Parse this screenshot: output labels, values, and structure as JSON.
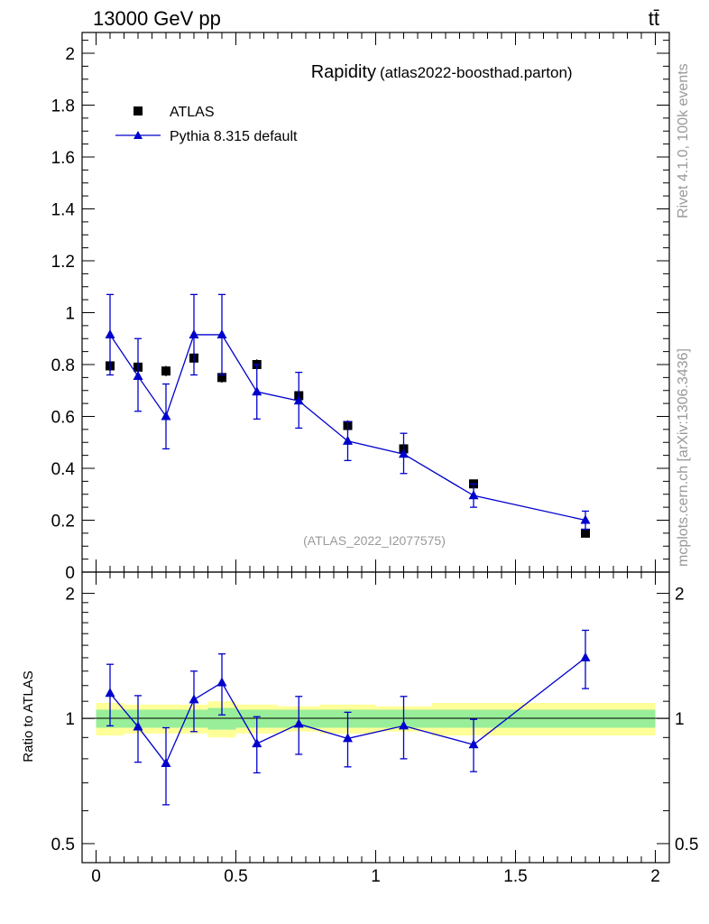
{
  "header": {
    "energy_label": "13000 GeV pp",
    "process_label": "tt̄"
  },
  "side_labels": {
    "rivet": "Rivet 4.1.0,  100k events",
    "mcplots": "mcplots.cern.ch [arXiv:1306.3436]"
  },
  "chart_data": [
    {
      "type": "scatter",
      "title": "Rapidity",
      "subtitle": "(atlas2022-boosthad.parton)",
      "watermark": "(ATLAS_2022_I2077575)",
      "xlim": [
        -0.05,
        2.05
      ],
      "ylim": [
        0,
        2.08
      ],
      "yticks": [
        {
          "v": 0,
          "label": "0"
        },
        {
          "v": 0.2,
          "label": "0.2"
        },
        {
          "v": 0.4,
          "label": "0.4"
        },
        {
          "v": 0.6,
          "label": "0.6"
        },
        {
          "v": 0.8,
          "label": "0.8"
        },
        {
          "v": 1.0,
          "label": "1"
        },
        {
          "v": 1.2,
          "label": "1.2"
        },
        {
          "v": 1.4,
          "label": "1.4"
        },
        {
          "v": 1.6,
          "label": "1.6"
        },
        {
          "v": 1.8,
          "label": "1.8"
        },
        {
          "v": 2.0,
          "label": "2"
        }
      ],
      "legend": [
        {
          "name": "ATLAS",
          "marker": "square",
          "color": "#000000"
        },
        {
          "name": "Pythia 8.315 default",
          "marker": "triangle",
          "color": "#0000cc"
        }
      ],
      "series": [
        {
          "name": "ATLAS",
          "color": "#000000",
          "x": [
            0.05,
            0.15,
            0.25,
            0.35,
            0.45,
            0.575,
            0.725,
            0.9,
            1.1,
            1.35,
            1.75
          ],
          "y": [
            0.795,
            0.79,
            0.775,
            0.825,
            0.75,
            0.8,
            0.68,
            0.565,
            0.475,
            0.34,
            0.15
          ],
          "err": [
            0.02,
            0.02,
            0.02,
            0.02,
            0.02,
            0.02,
            0.02,
            0.02,
            0.02,
            0.015,
            0.012
          ]
        },
        {
          "name": "Pythia 8.315 default",
          "color": "#0000cc",
          "x": [
            0.05,
            0.15,
            0.25,
            0.35,
            0.45,
            0.575,
            0.725,
            0.9,
            1.1,
            1.35,
            1.75
          ],
          "xerr": [
            0.05,
            0.05,
            0.05,
            0.05,
            0.05,
            0.075,
            0.075,
            0.1,
            0.1,
            0.15,
            0.25
          ],
          "y": [
            0.915,
            0.755,
            0.6,
            0.915,
            0.915,
            0.695,
            0.66,
            0.505,
            0.455,
            0.295,
            0.2
          ],
          "err_up": [
            0.155,
            0.145,
            0.125,
            0.155,
            0.155,
            0.105,
            0.11,
            0.075,
            0.08,
            0.045,
            0.035
          ],
          "err_dn": [
            0.155,
            0.135,
            0.125,
            0.155,
            0.155,
            0.105,
            0.105,
            0.075,
            0.075,
            0.045,
            0.035
          ]
        }
      ]
    },
    {
      "type": "scatter",
      "ylabel": "Ratio to ATLAS",
      "xlim": [
        -0.05,
        2.05
      ],
      "ylim": [
        0.45,
        2.25
      ],
      "yscale": "log",
      "xticks": [
        {
          "v": 0,
          "label": "0"
        },
        {
          "v": 0.5,
          "label": "0.5"
        },
        {
          "v": 1.0,
          "label": "1"
        },
        {
          "v": 1.5,
          "label": "1.5"
        },
        {
          "v": 2.0,
          "label": "2"
        }
      ],
      "yticks": [
        {
          "v": 0.5,
          "label": "0.5"
        },
        {
          "v": 1.0,
          "label": "1"
        },
        {
          "v": 2.0,
          "label": "2"
        }
      ],
      "bands": {
        "bins": [
          [
            0.0,
            0.1
          ],
          [
            0.1,
            0.2
          ],
          [
            0.2,
            0.3
          ],
          [
            0.3,
            0.4
          ],
          [
            0.4,
            0.5
          ],
          [
            0.5,
            0.65
          ],
          [
            0.65,
            0.8
          ],
          [
            0.8,
            1.0
          ],
          [
            1.0,
            1.2
          ],
          [
            1.2,
            1.5
          ],
          [
            1.5,
            2.0
          ]
        ],
        "stat": [
          0.05,
          0.05,
          0.05,
          0.05,
          0.06,
          0.05,
          0.05,
          0.05,
          0.05,
          0.05,
          0.05
        ],
        "total": [
          0.09,
          0.08,
          0.08,
          0.08,
          0.1,
          0.08,
          0.07,
          0.08,
          0.07,
          0.09,
          0.09
        ],
        "stat_color": "#99ee99",
        "total_color": "#ffff99"
      },
      "series": [
        {
          "name": "Pythia 8.315 default",
          "color": "#0000cc",
          "x": [
            0.05,
            0.15,
            0.25,
            0.35,
            0.45,
            0.575,
            0.725,
            0.9,
            1.1,
            1.35,
            1.75
          ],
          "xerr": [
            0.05,
            0.05,
            0.05,
            0.05,
            0.05,
            0.075,
            0.075,
            0.1,
            0.1,
            0.15,
            0.25
          ],
          "y": [
            1.15,
            0.955,
            0.78,
            1.11,
            1.22,
            0.87,
            0.97,
            0.895,
            0.96,
            0.865,
            1.4
          ],
          "err_up": [
            0.2,
            0.18,
            0.17,
            0.19,
            0.21,
            0.14,
            0.16,
            0.14,
            0.17,
            0.13,
            0.23
          ],
          "err_dn": [
            0.19,
            0.17,
            0.16,
            0.18,
            0.2,
            0.13,
            0.15,
            0.13,
            0.16,
            0.12,
            0.22
          ]
        }
      ]
    }
  ]
}
